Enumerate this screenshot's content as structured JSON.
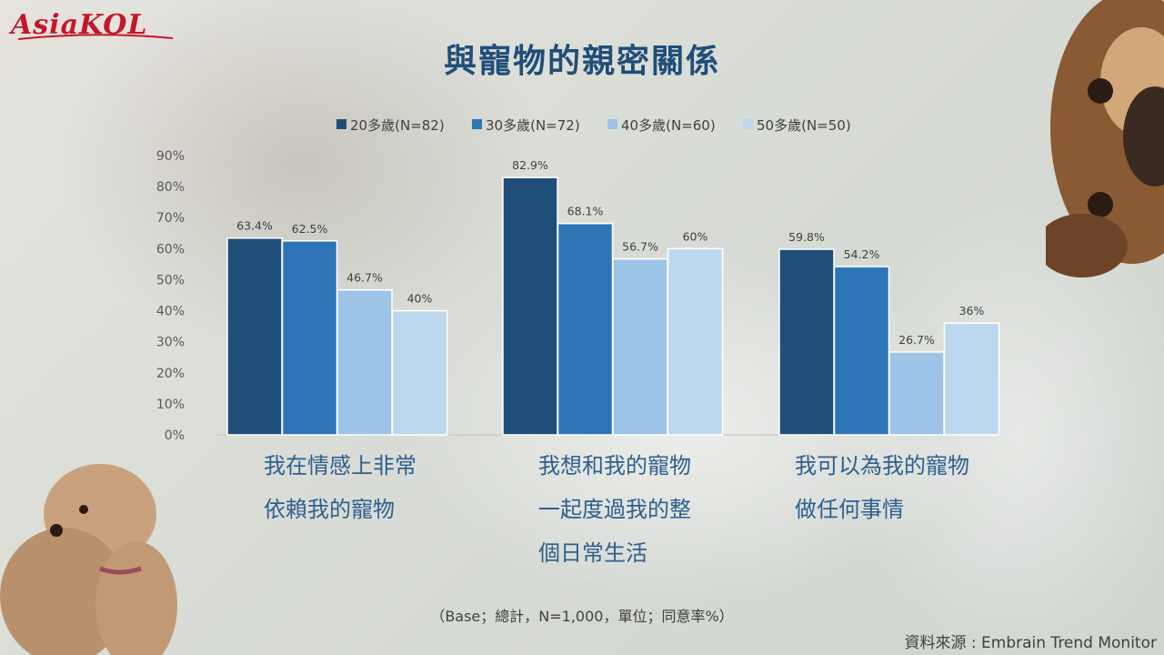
{
  "brand": {
    "logo_text": "AsiaKOL",
    "accent_color": "#c4162a"
  },
  "title": "與寵物的親密關係",
  "base_note": "（Base；總計，N=1,000，單位；同意率%）",
  "source": "資料來源 : Embrain Trend Monitor",
  "chart_data": {
    "type": "bar",
    "title": "與寵物的親密關係",
    "categories": [
      "我在情感上非常依賴我的寵物",
      "我想和我的寵物一起度過我的整個日常生活",
      "我可以為我的寵物做任何事情"
    ],
    "category_lines": [
      [
        "我在情感上非常",
        "依賴我的寵物"
      ],
      [
        "我想和我的寵物",
        "一起度過我的整",
        "個日常生活"
      ],
      [
        "我可以為我的寵物",
        "做任何事情"
      ]
    ],
    "series": [
      {
        "name": "20多歲(N=82)",
        "color": "#1f4e79",
        "values": [
          63.4,
          82.9,
          59.8
        ],
        "labels": [
          "63.4%",
          "82.9%",
          "59.8%"
        ]
      },
      {
        "name": "30多歲(N=72)",
        "color": "#2e75b6",
        "values": [
          62.5,
          68.1,
          54.2
        ],
        "labels": [
          "62.5%",
          "68.1%",
          "54.2%"
        ]
      },
      {
        "name": "40多歲(N=60)",
        "color": "#9dc3e6",
        "values": [
          46.7,
          56.7,
          26.7
        ],
        "labels": [
          "46.7%",
          "56.7%",
          "26.7%"
        ]
      },
      {
        "name": "50多歲(N=50)",
        "color": "#bdd7ee",
        "values": [
          40,
          60,
          36
        ],
        "labels": [
          "40%",
          "60%",
          "36%"
        ]
      }
    ],
    "ylim": [
      0,
      90
    ],
    "yticks": [
      0,
      10,
      20,
      30,
      40,
      50,
      60,
      70,
      80,
      90
    ],
    "ytick_labels": [
      "0%",
      "10%",
      "20%",
      "30%",
      "40%",
      "50%",
      "60%",
      "70%",
      "80%",
      "90%"
    ],
    "legend_position": "top",
    "grid": false
  }
}
